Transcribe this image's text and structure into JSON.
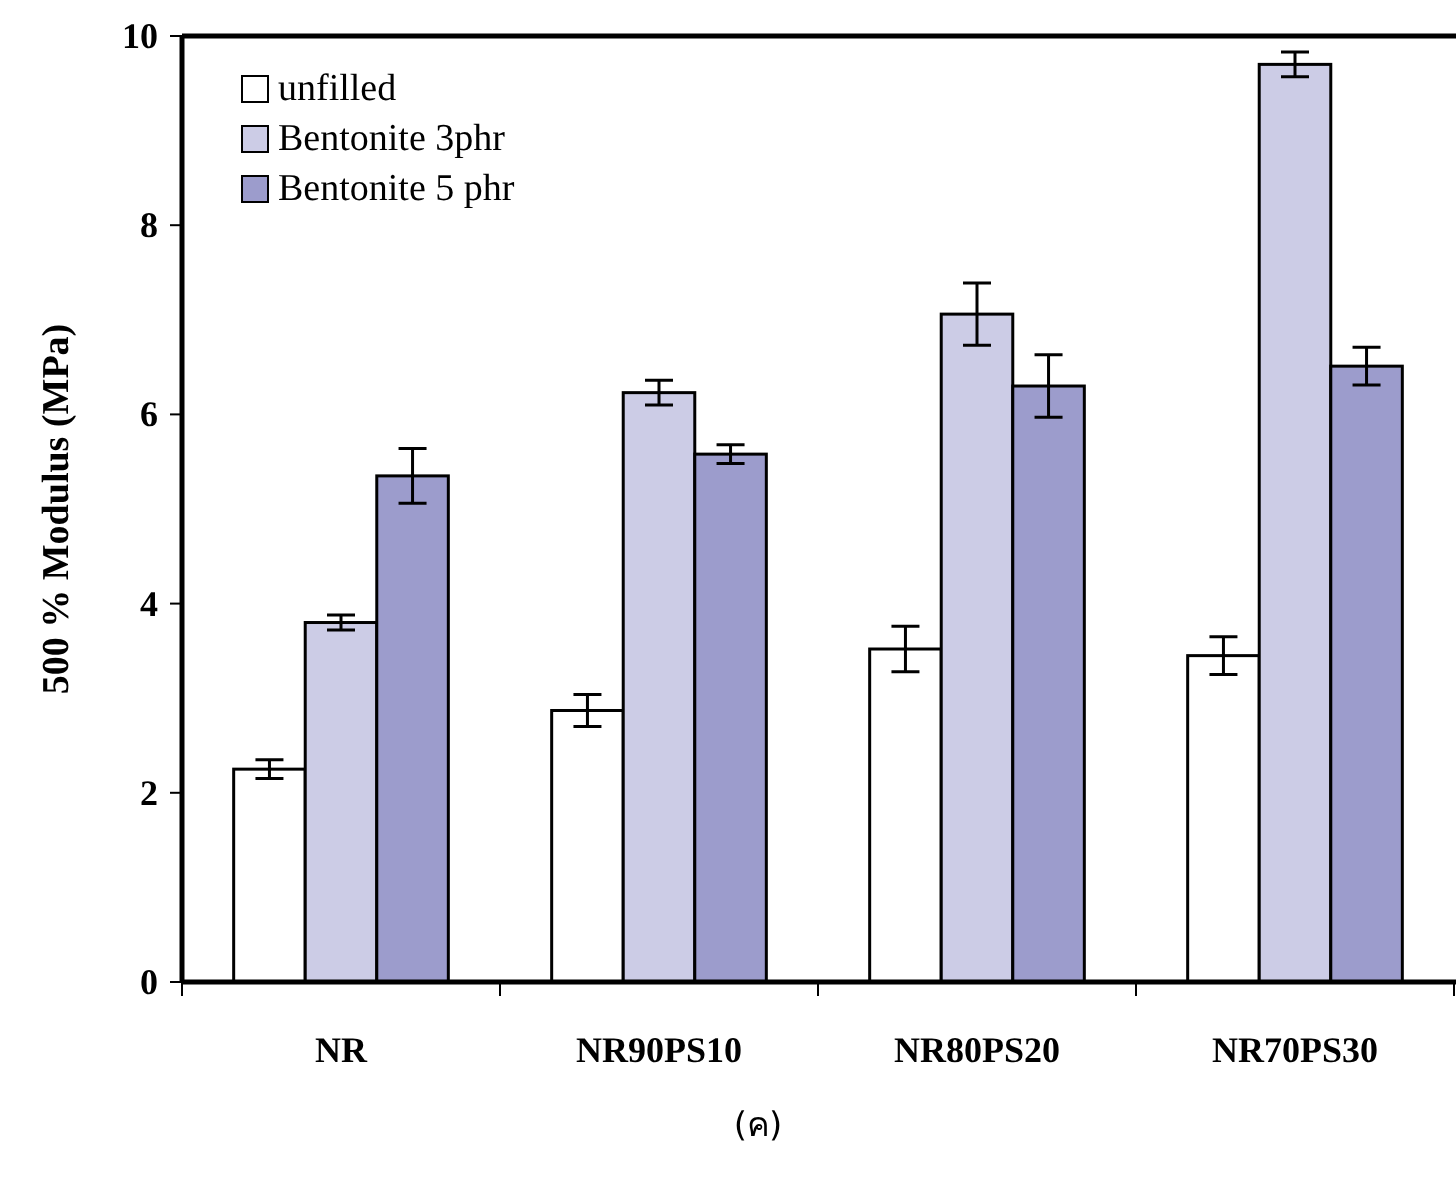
{
  "chart_data": {
    "type": "bar",
    "ylabel": "500 % Modulus (MPa)",
    "categories": [
      "NR",
      "NR90PS10",
      "NR80PS20",
      "NR70PS30"
    ],
    "series": [
      {
        "name": "unfilled",
        "color": "#ffffff",
        "values": [
          2.25,
          2.87,
          3.52,
          3.45
        ],
        "errors": [
          0.1,
          0.17,
          0.24,
          0.2
        ]
      },
      {
        "name": "Bentonite 3phr",
        "color": "#ccccE6",
        "values": [
          3.8,
          6.23,
          7.06,
          9.7
        ],
        "errors": [
          0.08,
          0.13,
          0.33,
          0.13
        ]
      },
      {
        "name": "Bentonite 5 phr",
        "color": "#9c9ccc",
        "values": [
          5.35,
          5.58,
          6.3,
          6.51
        ],
        "errors": [
          0.29,
          0.1,
          0.33,
          0.2
        ]
      }
    ],
    "ylim": [
      0,
      10
    ],
    "yticks": [
      0,
      2,
      4,
      6,
      8,
      10
    ],
    "legend": "top left",
    "annotations": [
      "(ค)"
    ]
  }
}
